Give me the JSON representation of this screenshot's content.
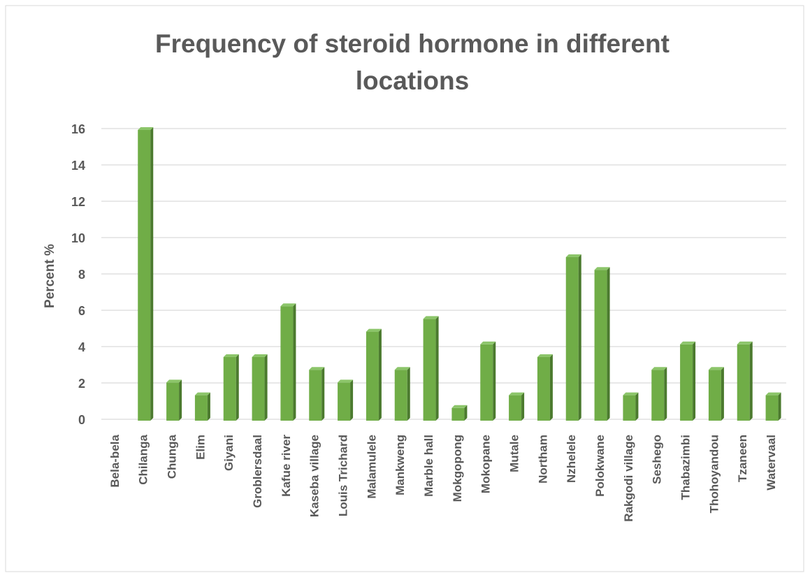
{
  "chart_data": {
    "type": "bar",
    "title": "Frequency of steroid hormone in different locations",
    "y_label": "Percent %",
    "categories": [
      "Bela-bela",
      "Chilanga",
      "Chunga",
      "Elim",
      "Giyani",
      "Groblersdaal",
      "Kafue river",
      "Kaseba village",
      "Louis Trichard",
      "Malamulele",
      "Mankweng",
      "Marble hall",
      "Mokgopong",
      "Mokopane",
      "Mutale",
      "Northam",
      "Nzhelele",
      "Polokwane",
      "Rakgodi village",
      "Seshego",
      "Thabazimbi",
      "Thohoyandou",
      "Tzaneen",
      "Watervaal"
    ],
    "values": [
      0,
      16,
      2.1,
      1.4,
      3.5,
      3.5,
      6.3,
      2.8,
      2.1,
      4.9,
      2.8,
      5.6,
      0.7,
      4.2,
      1.4,
      3.5,
      9,
      8.3,
      1.4,
      2.8,
      4.2,
      2.8,
      4.2,
      1.4
    ],
    "color": "#70ad47",
    "ylim": [
      0,
      16
    ],
    "yticks": [
      0,
      2,
      4,
      6,
      8,
      10,
      12,
      14,
      16
    ],
    "grid": true
  }
}
